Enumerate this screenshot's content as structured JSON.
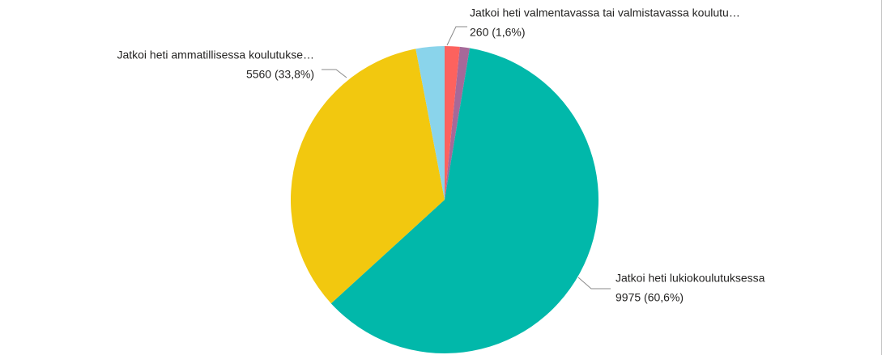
{
  "chart_data": {
    "type": "pie",
    "categories": [
      "Jatkoi heti valmentavassa tai valmistavassa koulutu…",
      null,
      "Jatkoi heti lukiokoulutuksessa",
      "Jatkoi heti ammatillisessa koulutukse…",
      null
    ],
    "values": [
      260,
      170,
      9975,
      5560,
      495
    ],
    "value_labels": [
      "260 (1,6%)",
      null,
      "9975 (60,6%)",
      "5560 (33,8%)",
      null
    ],
    "colors": [
      "#fd625e",
      "#a66999",
      "#01b8aa",
      "#f2c80f",
      "#8ad4eb"
    ]
  }
}
